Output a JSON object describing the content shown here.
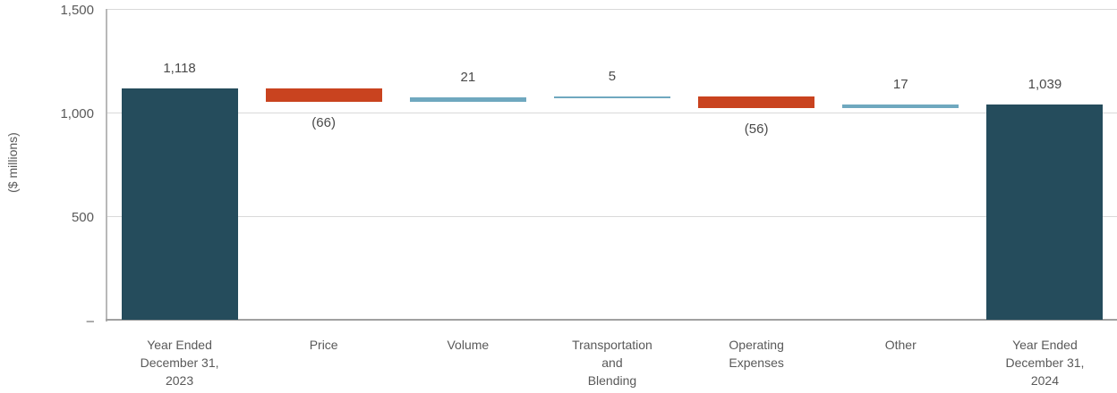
{
  "chart_data": {
    "type": "bar",
    "subtype": "waterfall",
    "title": "",
    "ylabel": "($ millions)",
    "xlabel": "",
    "ylim": [
      0,
      1500
    ],
    "grid": true,
    "legend": false,
    "yticks": [
      {
        "value": 1500,
        "label": "1,500"
      },
      {
        "value": 1000,
        "label": "1,000"
      },
      {
        "value": 500,
        "label": "500"
      },
      {
        "value": 0,
        "label": "–",
        "dash_offset": true
      }
    ],
    "categories": [
      "Year Ended December 31, 2023",
      "Price",
      "Volume",
      "Transportation and Blending",
      "Operating Expenses",
      "Other",
      "Year Ended December 31, 2024"
    ],
    "bars": [
      {
        "category": "Year Ended December 31, 2023",
        "category_lines": [
          "Year Ended",
          "December 31,",
          "2023"
        ],
        "role": "total",
        "value": 1118,
        "label": "1,118",
        "start": 0,
        "end": 1118,
        "label_position": "above"
      },
      {
        "category": "Price",
        "category_lines": [
          "Price"
        ],
        "role": "decrease",
        "value": -66,
        "label": "(66)",
        "start": 1118,
        "end": 1052,
        "label_position": "below"
      },
      {
        "category": "Volume",
        "category_lines": [
          "Volume"
        ],
        "role": "increase",
        "value": 21,
        "label": "21",
        "start": 1052,
        "end": 1073,
        "label_position": "above"
      },
      {
        "category": "Transportation and Blending",
        "category_lines": [
          "Transportation",
          "and",
          "Blending"
        ],
        "role": "increase",
        "value": 5,
        "label": "5",
        "start": 1073,
        "end": 1078,
        "label_position": "above"
      },
      {
        "category": "Operating Expenses",
        "category_lines": [
          "Operating",
          "Expenses"
        ],
        "role": "decrease",
        "value": -56,
        "label": "(56)",
        "start": 1078,
        "end": 1022,
        "label_position": "below"
      },
      {
        "category": "Other",
        "category_lines": [
          "Other"
        ],
        "role": "increase",
        "value": 17,
        "label": "17",
        "start": 1022,
        "end": 1039,
        "label_position": "above"
      },
      {
        "category": "Year Ended December 31, 2024",
        "category_lines": [
          "Year Ended",
          "December 31,",
          "2024"
        ],
        "role": "total",
        "value": 1039,
        "label": "1,039",
        "start": 0,
        "end": 1039,
        "label_position": "above"
      }
    ],
    "colors": {
      "total": "#254c5c",
      "decrease": "#c9431f",
      "increase": "#6fa8bf",
      "gridline": "#d9d9d9",
      "axis_line": "#a0a0a0",
      "axis_text": "#595959",
      "value_text": "#4a4a4a"
    }
  }
}
